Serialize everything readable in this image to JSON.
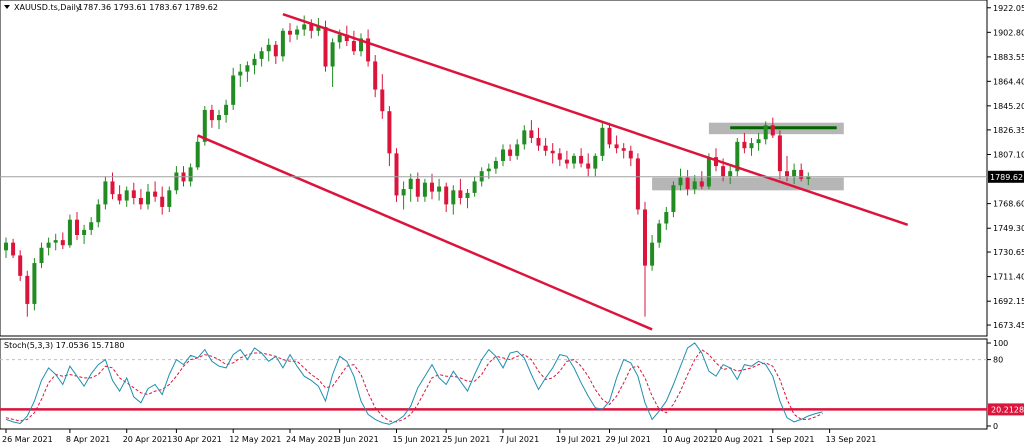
{
  "chart_data": {
    "type": "candlestick",
    "symbol": "XAUUSD.ts,Daily",
    "ohlc_header": "1787.36 1793.61 1783.67 1789.62",
    "price_axis": {
      "ticks": [
        "1922.05",
        "1902.80",
        "1883.55",
        "1864.40",
        "1845.20",
        "1826.35",
        "1807.10",
        "1789.62",
        "1768.60",
        "1749.30",
        "1730.65",
        "1711.40",
        "1692.15",
        "1673.45"
      ],
      "ylim": [
        1668,
        1925
      ],
      "current_price": 1789.62,
      "current_label": "1789.62"
    },
    "date_axis": {
      "labels": [
        "26 Mar 2021",
        "8 Apr 2021",
        "20 Apr 2021",
        "30 Apr 2021",
        "12 May 2021",
        "24 May 2021",
        "3 Jun 2021",
        "15 Jun 2021",
        "25 Jun 2021",
        "7 Jul 2021",
        "19 Jul 2021",
        "29 Jul 2021",
        "10 Aug 2021",
        "20 Aug 2021",
        "1 Sep 2021",
        "13 Sep 2021"
      ],
      "label_bar_index": [
        0,
        9,
        17,
        24,
        32,
        40,
        47,
        55,
        62,
        70,
        78,
        85,
        93,
        100,
        108,
        116
      ]
    },
    "candles": [
      [
        1732,
        1742,
        1726,
        1738
      ],
      [
        1738,
        1741,
        1726,
        1728
      ],
      [
        1728,
        1732,
        1708,
        1712
      ],
      [
        1712,
        1716,
        1680,
        1690
      ],
      [
        1690,
        1726,
        1685,
        1722
      ],
      [
        1722,
        1738,
        1718,
        1734
      ],
      [
        1734,
        1742,
        1728,
        1738
      ],
      [
        1738,
        1745,
        1732,
        1740
      ],
      [
        1740,
        1746,
        1733,
        1736
      ],
      [
        1736,
        1760,
        1734,
        1756
      ],
      [
        1756,
        1762,
        1740,
        1744
      ],
      [
        1744,
        1752,
        1737,
        1748
      ],
      [
        1748,
        1758,
        1744,
        1754
      ],
      [
        1754,
        1772,
        1750,
        1768
      ],
      [
        1768,
        1790,
        1764,
        1786
      ],
      [
        1786,
        1793,
        1772,
        1776
      ],
      [
        1776,
        1783,
        1768,
        1771
      ],
      [
        1771,
        1782,
        1766,
        1779
      ],
      [
        1779,
        1785,
        1768,
        1773
      ],
      [
        1773,
        1780,
        1764,
        1768
      ],
      [
        1768,
        1784,
        1764,
        1778
      ],
      [
        1778,
        1786,
        1770,
        1774
      ],
      [
        1774,
        1782,
        1760,
        1766
      ],
      [
        1766,
        1782,
        1762,
        1779
      ],
      [
        1779,
        1798,
        1776,
        1793
      ],
      [
        1793,
        1798,
        1782,
        1786
      ],
      [
        1786,
        1800,
        1782,
        1797
      ],
      [
        1797,
        1822,
        1795,
        1817
      ],
      [
        1817,
        1845,
        1814,
        1842
      ],
      [
        1842,
        1846,
        1828,
        1834
      ],
      [
        1834,
        1842,
        1827,
        1838
      ],
      [
        1838,
        1850,
        1832,
        1846
      ],
      [
        1846,
        1875,
        1842,
        1869
      ],
      [
        1869,
        1878,
        1860,
        1872
      ],
      [
        1872,
        1880,
        1864,
        1877
      ],
      [
        1877,
        1886,
        1870,
        1882
      ],
      [
        1882,
        1891,
        1876,
        1888
      ],
      [
        1888,
        1898,
        1880,
        1893
      ],
      [
        1893,
        1896,
        1878,
        1884
      ],
      [
        1884,
        1906,
        1880,
        1904
      ],
      [
        1904,
        1910,
        1895,
        1901
      ],
      [
        1901,
        1908,
        1897,
        1905
      ],
      [
        1905,
        1916,
        1900,
        1909
      ],
      [
        1909,
        1913,
        1898,
        1904
      ],
      [
        1904,
        1914,
        1900,
        1907
      ],
      [
        1907,
        1912,
        1872,
        1876
      ],
      [
        1876,
        1898,
        1860,
        1895
      ],
      [
        1895,
        1905,
        1890,
        1901
      ],
      [
        1901,
        1908,
        1892,
        1896
      ],
      [
        1896,
        1904,
        1885,
        1888
      ],
      [
        1888,
        1902,
        1884,
        1898
      ],
      [
        1898,
        1905,
        1876,
        1880
      ],
      [
        1880,
        1885,
        1852,
        1858
      ],
      [
        1858,
        1870,
        1835,
        1841
      ],
      [
        1841,
        1845,
        1798,
        1808
      ],
      [
        1808,
        1812,
        1770,
        1775
      ],
      [
        1775,
        1786,
        1764,
        1780
      ],
      [
        1780,
        1792,
        1770,
        1788
      ],
      [
        1788,
        1793,
        1770,
        1774
      ],
      [
        1774,
        1788,
        1770,
        1785
      ],
      [
        1785,
        1792,
        1772,
        1778
      ],
      [
        1778,
        1788,
        1771,
        1782
      ],
      [
        1782,
        1785,
        1762,
        1768
      ],
      [
        1768,
        1783,
        1760,
        1779
      ],
      [
        1779,
        1788,
        1768,
        1773
      ],
      [
        1773,
        1780,
        1765,
        1777
      ],
      [
        1777,
        1790,
        1774,
        1786
      ],
      [
        1786,
        1797,
        1782,
        1794
      ],
      [
        1794,
        1800,
        1788,
        1796
      ],
      [
        1796,
        1805,
        1792,
        1802
      ],
      [
        1802,
        1815,
        1798,
        1811
      ],
      [
        1811,
        1815,
        1802,
        1806
      ],
      [
        1806,
        1819,
        1803,
        1815
      ],
      [
        1815,
        1830,
        1811,
        1826
      ],
      [
        1826,
        1834,
        1816,
        1820
      ],
      [
        1820,
        1828,
        1810,
        1814
      ],
      [
        1814,
        1820,
        1806,
        1810
      ],
      [
        1810,
        1816,
        1800,
        1808
      ],
      [
        1808,
        1812,
        1798,
        1803
      ],
      [
        1803,
        1810,
        1796,
        1800
      ],
      [
        1800,
        1808,
        1796,
        1806
      ],
      [
        1806,
        1812,
        1797,
        1800
      ],
      [
        1800,
        1808,
        1790,
        1796
      ],
      [
        1796,
        1808,
        1790,
        1806
      ],
      [
        1806,
        1833,
        1802,
        1828
      ],
      [
        1828,
        1832,
        1812,
        1815
      ],
      [
        1815,
        1822,
        1808,
        1812
      ],
      [
        1812,
        1816,
        1804,
        1810
      ],
      [
        1810,
        1814,
        1798,
        1804
      ],
      [
        1804,
        1808,
        1760,
        1764
      ],
      [
        1764,
        1770,
        1680,
        1720
      ],
      [
        1720,
        1744,
        1716,
        1738
      ],
      [
        1738,
        1756,
        1734,
        1753
      ],
      [
        1753,
        1766,
        1748,
        1762
      ],
      [
        1762,
        1786,
        1758,
        1783
      ],
      [
        1783,
        1796,
        1779,
        1789
      ],
      [
        1789,
        1795,
        1775,
        1780
      ],
      [
        1780,
        1791,
        1776,
        1786
      ],
      [
        1786,
        1794,
        1780,
        1782
      ],
      [
        1782,
        1808,
        1780,
        1805
      ],
      [
        1805,
        1812,
        1794,
        1798
      ],
      [
        1798,
        1804,
        1786,
        1790
      ],
      [
        1790,
        1798,
        1784,
        1794
      ],
      [
        1794,
        1820,
        1790,
        1817
      ],
      [
        1817,
        1824,
        1808,
        1812
      ],
      [
        1812,
        1820,
        1806,
        1816
      ],
      [
        1816,
        1824,
        1810,
        1819
      ],
      [
        1819,
        1833,
        1815,
        1830
      ],
      [
        1830,
        1836,
        1820,
        1822
      ],
      [
        1822,
        1826,
        1788,
        1794
      ],
      [
        1794,
        1806,
        1786,
        1790
      ],
      [
        1790,
        1800,
        1784,
        1795
      ],
      [
        1795,
        1800,
        1786,
        1788
      ],
      [
        1788,
        1793,
        1783,
        1790
      ]
    ],
    "lines": [
      {
        "name": "upper-channel",
        "color": "#dc143c",
        "from": [
          39,
          1917
        ],
        "to": [
          127,
          1752
        ]
      },
      {
        "name": "lower-channel",
        "color": "#dc143c",
        "from": [
          27,
          1822
        ],
        "to": [
          91,
          1670
        ]
      }
    ],
    "zones": [
      {
        "name": "resistance-zone",
        "from_bar": 99,
        "to_bar": 118,
        "low": 1823,
        "high": 1832,
        "color": "#a9a9a9"
      },
      {
        "name": "support-zone",
        "from_bar": 91,
        "to_bar": 118,
        "low": 1779,
        "high": 1789,
        "color": "#a9a9a9"
      }
    ],
    "target_line": {
      "price": 1828,
      "from_bar": 102,
      "to_bar": 117,
      "color": "#006400"
    },
    "stochastic": {
      "label": "Stoch(5,3,3) 17.0536 15.7180",
      "ticks": [
        "100",
        "80",
        "20",
        "0"
      ],
      "levels": [
        80,
        20
      ],
      "value_label": "20.2128",
      "k_color": "#1e90b0",
      "d_color": "#dc143c",
      "k": [
        8,
        5,
        3,
        12,
        30,
        55,
        70,
        62,
        50,
        72,
        60,
        48,
        63,
        74,
        80,
        55,
        42,
        58,
        35,
        28,
        45,
        50,
        38,
        62,
        80,
        74,
        85,
        82,
        92,
        78,
        72,
        70,
        86,
        92,
        80,
        94,
        88,
        78,
        84,
        70,
        86,
        72,
        60,
        55,
        48,
        30,
        62,
        84,
        78,
        60,
        30,
        14,
        8,
        4,
        2,
        6,
        12,
        24,
        46,
        60,
        74,
        58,
        50,
        66,
        54,
        42,
        62,
        80,
        92,
        84,
        70,
        88,
        90,
        82,
        62,
        44,
        58,
        70,
        86,
        84,
        70,
        52,
        36,
        22,
        20,
        30,
        58,
        80,
        76,
        60,
        28,
        8,
        18,
        30,
        50,
        72,
        94,
        100,
        88,
        66,
        60,
        74,
        70,
        56,
        74,
        72,
        78,
        74,
        60,
        30,
        10,
        5,
        8,
        12,
        15,
        17
      ],
      "d": [
        10,
        8,
        6,
        8,
        16,
        32,
        52,
        62,
        60,
        62,
        60,
        58,
        58,
        62,
        72,
        70,
        58,
        52,
        46,
        40,
        38,
        42,
        44,
        50,
        60,
        72,
        80,
        82,
        86,
        84,
        80,
        74,
        76,
        82,
        86,
        88,
        88,
        86,
        84,
        80,
        78,
        78,
        70,
        62,
        56,
        46,
        48,
        60,
        72,
        74,
        62,
        40,
        22,
        12,
        6,
        5,
        8,
        14,
        26,
        42,
        58,
        62,
        60,
        60,
        58,
        54,
        54,
        62,
        76,
        84,
        82,
        80,
        84,
        86,
        80,
        66,
        56,
        58,
        66,
        78,
        80,
        72,
        60,
        44,
        32,
        26,
        36,
        52,
        70,
        72,
        58,
        36,
        20,
        16,
        26,
        42,
        62,
        80,
        92,
        86,
        76,
        68,
        70,
        66,
        68,
        70,
        74,
        76,
        72,
        56,
        32,
        14,
        8,
        8,
        11,
        15
      ]
    }
  }
}
